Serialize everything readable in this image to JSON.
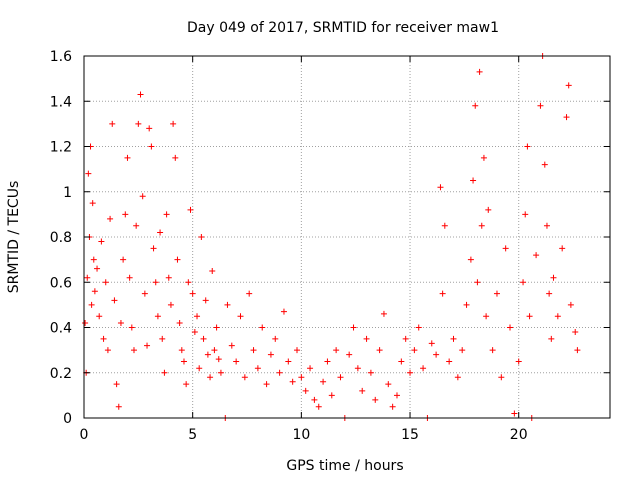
{
  "chart_data": {
    "type": "scatter",
    "title": "Day 049 of 2017, SRMTID for receiver maw1",
    "xlabel": "GPS time / hours",
    "ylabel": "SRMTID / TECUs",
    "xlim": [
      0,
      24.2
    ],
    "ylim": [
      0,
      1.6
    ],
    "grid": true,
    "marker": "+",
    "x_ticks": [
      0,
      5,
      10,
      15,
      20
    ],
    "x_tick_labels": [
      "0",
      "5",
      "10",
      "15",
      "20"
    ],
    "y_ticks": [
      0,
      0.2,
      0.4,
      0.6,
      0.8,
      1,
      1.2,
      1.4,
      1.6
    ],
    "y_tick_labels": [
      "0",
      "0.2",
      "0.4",
      "0.6",
      "0.8",
      "1",
      "1.2",
      "1.4",
      "1.6"
    ],
    "series": [
      {
        "name": "maw1",
        "color": "#ff0000",
        "points": [
          [
            0.05,
            0.42
          ],
          [
            0.1,
            0.2
          ],
          [
            0.15,
            0.62
          ],
          [
            0.2,
            1.08
          ],
          [
            0.25,
            0.8
          ],
          [
            0.3,
            1.2
          ],
          [
            0.35,
            0.5
          ],
          [
            0.4,
            0.95
          ],
          [
            0.45,
            0.7
          ],
          [
            0.5,
            0.56
          ],
          [
            0.6,
            0.66
          ],
          [
            0.7,
            0.45
          ],
          [
            0.8,
            0.78
          ],
          [
            0.9,
            0.35
          ],
          [
            1.0,
            0.6
          ],
          [
            1.1,
            0.3
          ],
          [
            1.2,
            0.88
          ],
          [
            1.3,
            1.3
          ],
          [
            1.4,
            0.52
          ],
          [
            1.5,
            0.15
          ],
          [
            1.6,
            0.05
          ],
          [
            1.7,
            0.42
          ],
          [
            1.8,
            0.7
          ],
          [
            1.9,
            0.9
          ],
          [
            2.0,
            1.15
          ],
          [
            2.1,
            0.62
          ],
          [
            2.2,
            0.4
          ],
          [
            2.3,
            0.3
          ],
          [
            2.4,
            0.85
          ],
          [
            2.5,
            1.3
          ],
          [
            2.6,
            1.43
          ],
          [
            2.7,
            0.98
          ],
          [
            2.8,
            0.55
          ],
          [
            2.9,
            0.32
          ],
          [
            3.0,
            1.28
          ],
          [
            3.1,
            1.2
          ],
          [
            3.2,
            0.75
          ],
          [
            3.3,
            0.6
          ],
          [
            3.4,
            0.45
          ],
          [
            3.5,
            0.82
          ],
          [
            3.6,
            0.35
          ],
          [
            3.7,
            0.2
          ],
          [
            3.8,
            0.9
          ],
          [
            3.9,
            0.62
          ],
          [
            4.0,
            0.5
          ],
          [
            4.1,
            1.3
          ],
          [
            4.2,
            1.15
          ],
          [
            4.3,
            0.7
          ],
          [
            4.4,
            0.42
          ],
          [
            4.5,
            0.3
          ],
          [
            4.6,
            0.25
          ],
          [
            4.7,
            0.15
          ],
          [
            4.8,
            0.6
          ],
          [
            4.9,
            0.92
          ],
          [
            5.0,
            0.55
          ],
          [
            5.1,
            0.38
          ],
          [
            5.2,
            0.45
          ],
          [
            5.3,
            0.22
          ],
          [
            5.4,
            0.8
          ],
          [
            5.5,
            0.35
          ],
          [
            5.6,
            0.52
          ],
          [
            5.7,
            0.28
          ],
          [
            5.8,
            0.18
          ],
          [
            5.9,
            0.65
          ],
          [
            6.0,
            0.3
          ],
          [
            6.1,
            0.4
          ],
          [
            6.2,
            0.26
          ],
          [
            6.3,
            0.2
          ],
          [
            6.5,
            0.0
          ],
          [
            6.6,
            0.5
          ],
          [
            6.8,
            0.32
          ],
          [
            7.0,
            0.25
          ],
          [
            7.2,
            0.45
          ],
          [
            7.4,
            0.18
          ],
          [
            7.6,
            0.55
          ],
          [
            7.8,
            0.3
          ],
          [
            8.0,
            0.22
          ],
          [
            8.2,
            0.4
          ],
          [
            8.4,
            0.15
          ],
          [
            8.6,
            0.28
          ],
          [
            8.8,
            0.35
          ],
          [
            9.0,
            0.2
          ],
          [
            9.2,
            0.47
          ],
          [
            9.4,
            0.25
          ],
          [
            9.6,
            0.16
          ],
          [
            9.8,
            0.3
          ],
          [
            10.0,
            0.18
          ],
          [
            10.2,
            0.12
          ],
          [
            10.4,
            0.22
          ],
          [
            10.6,
            0.08
          ],
          [
            10.8,
            0.05
          ],
          [
            11.0,
            0.16
          ],
          [
            11.2,
            0.25
          ],
          [
            11.4,
            0.1
          ],
          [
            11.6,
            0.3
          ],
          [
            11.8,
            0.18
          ],
          [
            12.0,
            0.0
          ],
          [
            12.2,
            0.28
          ],
          [
            12.4,
            0.4
          ],
          [
            12.6,
            0.22
          ],
          [
            12.8,
            0.12
          ],
          [
            13.0,
            0.35
          ],
          [
            13.2,
            0.2
          ],
          [
            13.4,
            0.08
          ],
          [
            13.6,
            0.3
          ],
          [
            13.8,
            0.46
          ],
          [
            14.0,
            0.15
          ],
          [
            14.2,
            0.05
          ],
          [
            14.4,
            0.1
          ],
          [
            14.6,
            0.25
          ],
          [
            14.8,
            0.35
          ],
          [
            15.0,
            0.2
          ],
          [
            15.2,
            0.3
          ],
          [
            15.4,
            0.4
          ],
          [
            15.6,
            0.22
          ],
          [
            15.8,
            0.0
          ],
          [
            16.0,
            0.33
          ],
          [
            16.2,
            0.28
          ],
          [
            16.4,
            1.02
          ],
          [
            16.5,
            0.55
          ],
          [
            16.6,
            0.85
          ],
          [
            16.8,
            0.25
          ],
          [
            17.0,
            0.35
          ],
          [
            17.2,
            0.18
          ],
          [
            17.4,
            0.3
          ],
          [
            17.6,
            0.5
          ],
          [
            17.8,
            0.7
          ],
          [
            17.9,
            1.05
          ],
          [
            18.0,
            1.38
          ],
          [
            18.1,
            0.6
          ],
          [
            18.2,
            1.53
          ],
          [
            18.3,
            0.85
          ],
          [
            18.4,
            1.15
          ],
          [
            18.5,
            0.45
          ],
          [
            18.6,
            0.92
          ],
          [
            18.8,
            0.3
          ],
          [
            19.0,
            0.55
          ],
          [
            19.2,
            0.18
          ],
          [
            19.4,
            0.75
          ],
          [
            19.6,
            0.4
          ],
          [
            19.8,
            0.02
          ],
          [
            20.0,
            0.25
          ],
          [
            20.2,
            0.6
          ],
          [
            20.3,
            0.9
          ],
          [
            20.4,
            1.2
          ],
          [
            20.5,
            0.45
          ],
          [
            20.6,
            0.0
          ],
          [
            20.8,
            0.72
          ],
          [
            21.0,
            1.38
          ],
          [
            21.1,
            1.6
          ],
          [
            21.2,
            1.12
          ],
          [
            21.3,
            0.85
          ],
          [
            21.4,
            0.55
          ],
          [
            21.5,
            0.35
          ],
          [
            21.6,
            0.62
          ],
          [
            21.8,
            0.45
          ],
          [
            22.0,
            0.75
          ],
          [
            22.2,
            1.33
          ],
          [
            22.3,
            1.47
          ],
          [
            22.4,
            0.5
          ],
          [
            22.6,
            0.38
          ],
          [
            22.7,
            0.3
          ]
        ]
      }
    ]
  }
}
